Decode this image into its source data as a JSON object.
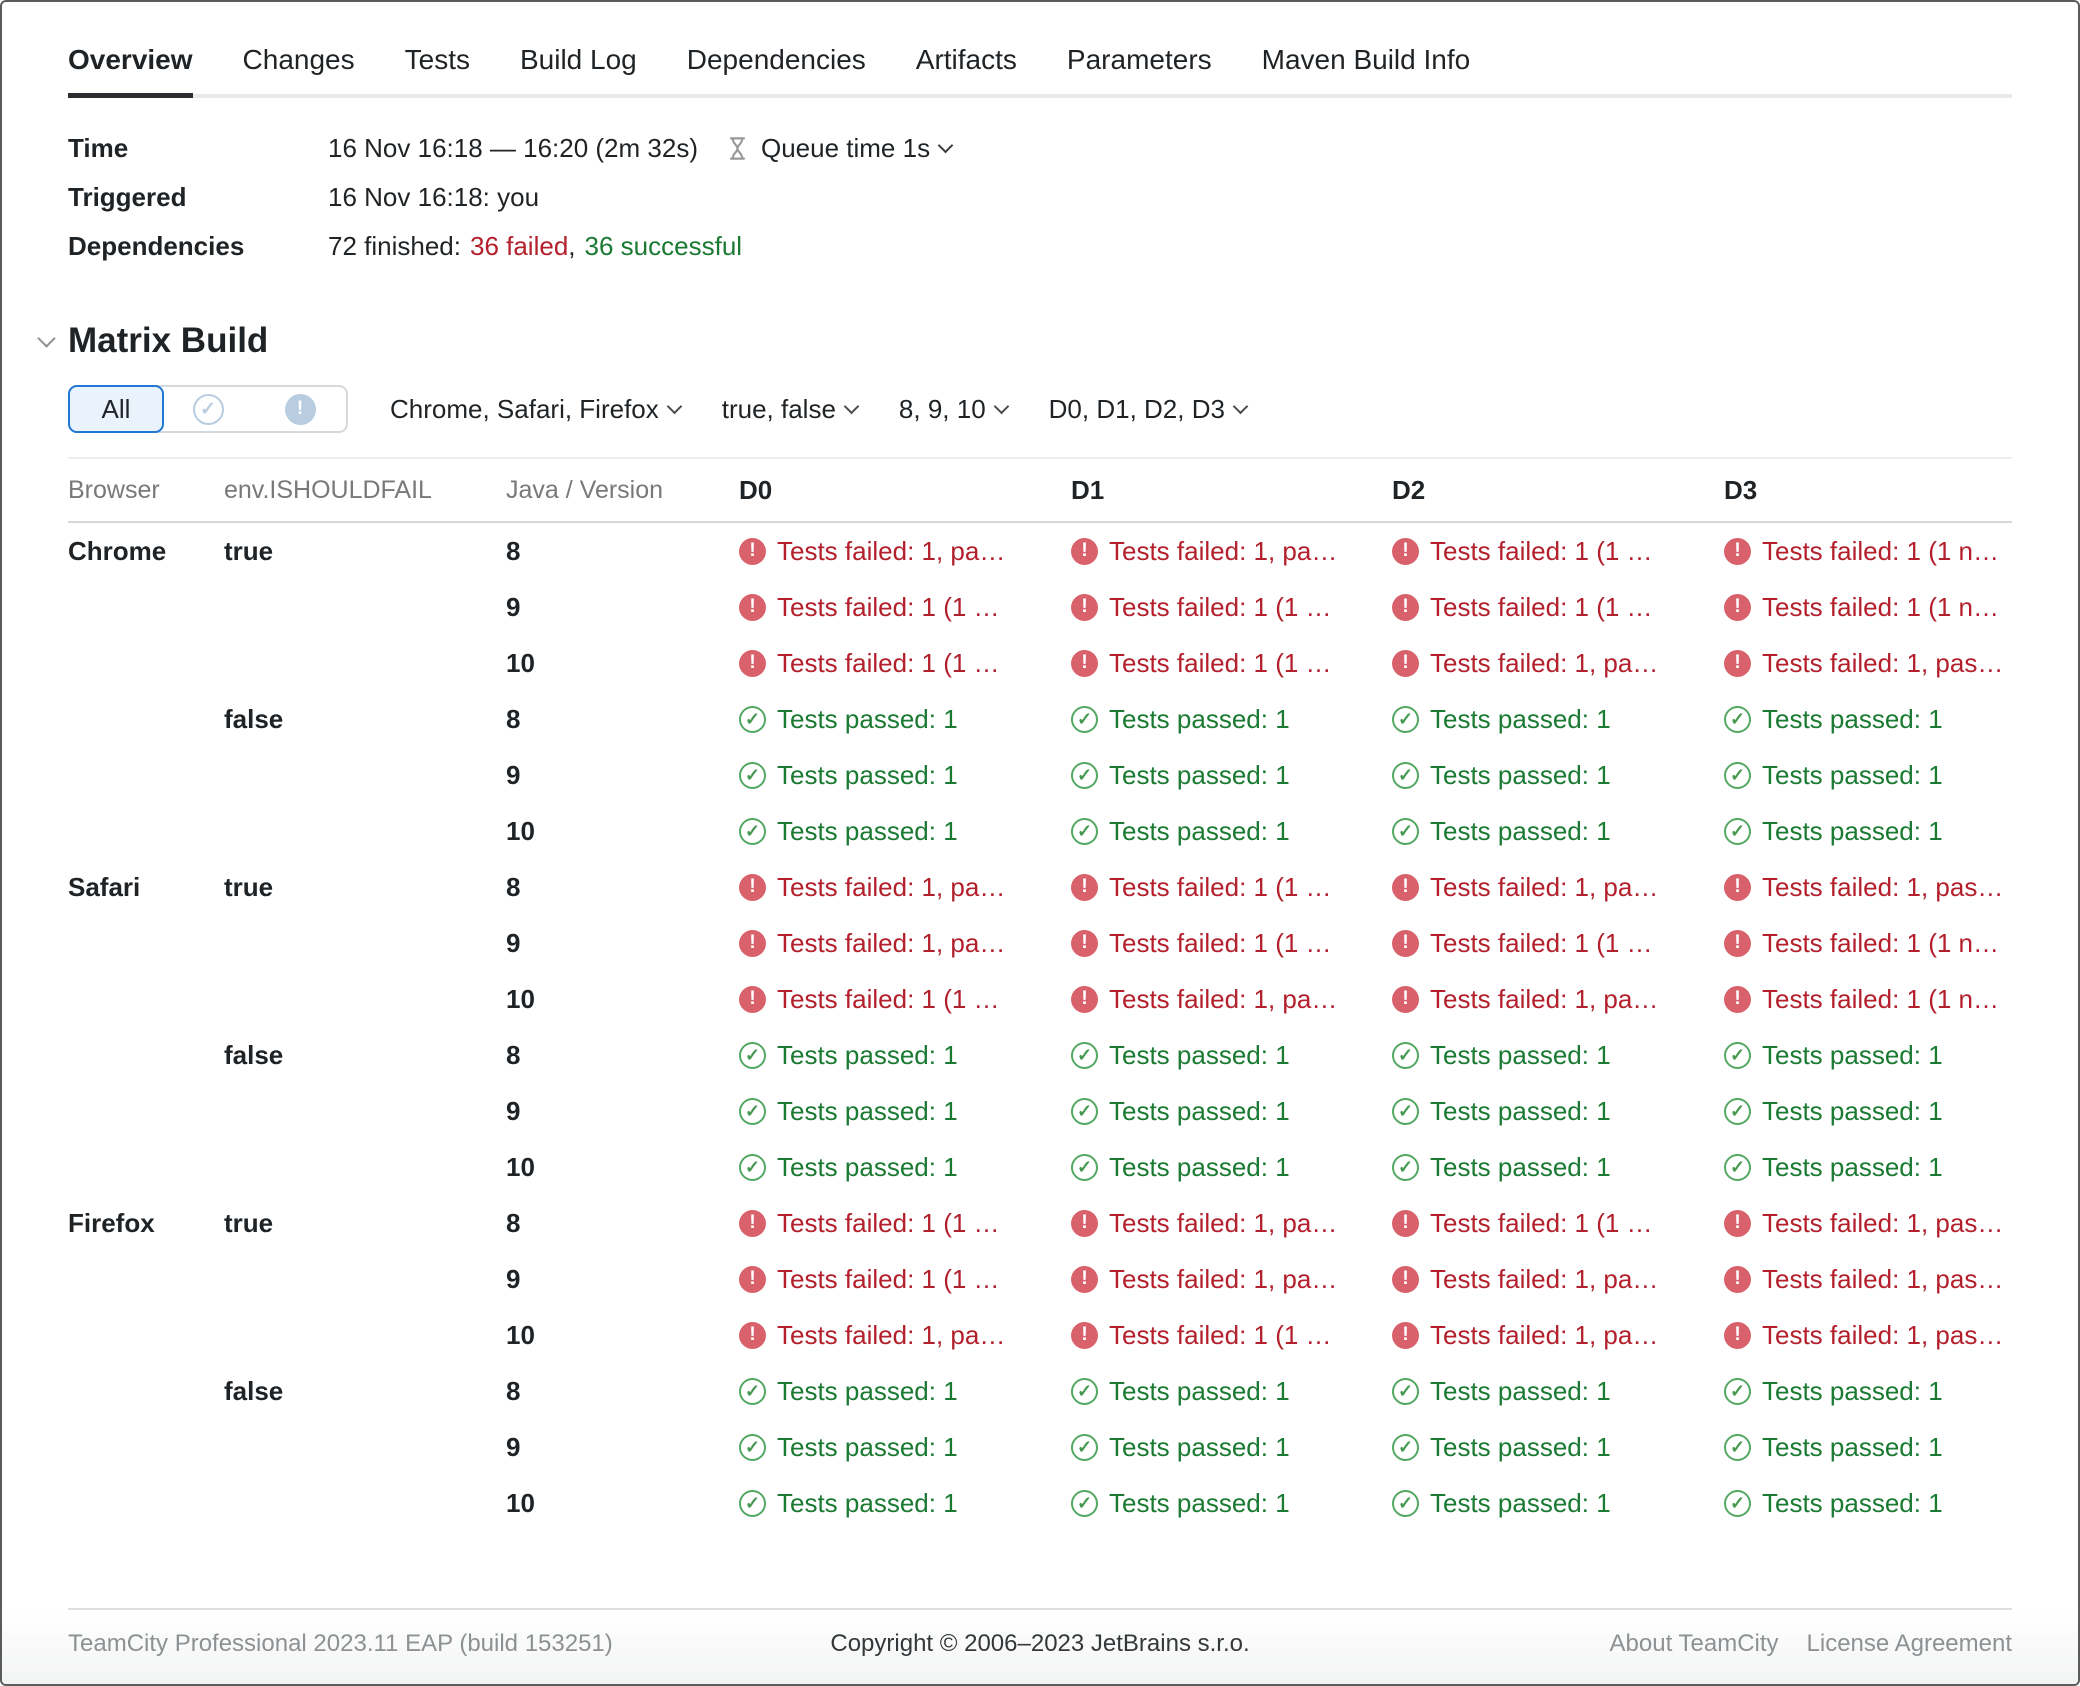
{
  "colors": {
    "failed_text": "#b3202c",
    "failed_icon_bg": "#d9616b",
    "passed_text": "#1a7a32",
    "passed_icon": "#53a862",
    "accent_blue": "#2077d4",
    "segment_icon_muted": "#b9cde0"
  },
  "icons": {
    "failed_glyph": "!",
    "passed_glyph": "✓",
    "segment_passed_glyph": "✓",
    "segment_failed_glyph": "!"
  },
  "tabs": {
    "items": [
      {
        "label": "Overview",
        "active": true
      },
      {
        "label": "Changes",
        "active": false
      },
      {
        "label": "Tests",
        "active": false
      },
      {
        "label": "Build Log",
        "active": false
      },
      {
        "label": "Dependencies",
        "active": false
      },
      {
        "label": "Artifacts",
        "active": false
      },
      {
        "label": "Parameters",
        "active": false
      },
      {
        "label": "Maven Build Info",
        "active": false
      }
    ]
  },
  "info": {
    "time_label": "Time",
    "time_value": "16 Nov 16:18 — 16:20 (2m 32s)",
    "queue_time_label": "Queue time 1s",
    "triggered_label": "Triggered",
    "triggered_value": "16 Nov 16:18: you",
    "dependencies_label": "Dependencies",
    "dependencies_prefix": "72 finished:",
    "dependencies_failed": "36 failed",
    "dependencies_comma": ",",
    "dependencies_successful": "36 successful"
  },
  "matrix": {
    "title": "Matrix Build",
    "segmented": {
      "all_label": "All"
    },
    "filters": [
      {
        "label": "Chrome, Safari, Firefox"
      },
      {
        "label": "true, false"
      },
      {
        "label": "8, 9, 10"
      },
      {
        "label": "D0, D1, D2, D3"
      }
    ],
    "table": {
      "columns": [
        "Browser",
        "env.ISHOULDFAIL",
        "Java / Version",
        "D0",
        "D1",
        "D2",
        "D3"
      ],
      "rows": [
        {
          "browser": "Chrome",
          "env": "true",
          "version": "8",
          "results": [
            {
              "status": "failed",
              "text": "Tests failed: 1, pa…"
            },
            {
              "status": "failed",
              "text": "Tests failed: 1, pa…"
            },
            {
              "status": "failed",
              "text": "Tests failed: 1 (1 …"
            },
            {
              "status": "failed",
              "text": "Tests failed: 1 (1 n…"
            }
          ]
        },
        {
          "browser": "",
          "env": "",
          "version": "9",
          "results": [
            {
              "status": "failed",
              "text": "Tests failed: 1 (1 …"
            },
            {
              "status": "failed",
              "text": "Tests failed: 1 (1 …"
            },
            {
              "status": "failed",
              "text": "Tests failed: 1 (1 …"
            },
            {
              "status": "failed",
              "text": "Tests failed: 1 (1 n…"
            }
          ]
        },
        {
          "browser": "",
          "env": "",
          "version": "10",
          "results": [
            {
              "status": "failed",
              "text": "Tests failed: 1 (1 …"
            },
            {
              "status": "failed",
              "text": "Tests failed: 1 (1 …"
            },
            {
              "status": "failed",
              "text": "Tests failed: 1, pa…"
            },
            {
              "status": "failed",
              "text": "Tests failed: 1, pas…"
            }
          ]
        },
        {
          "browser": "",
          "env": "false",
          "version": "8",
          "results": [
            {
              "status": "passed",
              "text": "Tests passed: 1"
            },
            {
              "status": "passed",
              "text": "Tests passed: 1"
            },
            {
              "status": "passed",
              "text": "Tests passed: 1"
            },
            {
              "status": "passed",
              "text": "Tests passed: 1"
            }
          ]
        },
        {
          "browser": "",
          "env": "",
          "version": "9",
          "results": [
            {
              "status": "passed",
              "text": "Tests passed: 1"
            },
            {
              "status": "passed",
              "text": "Tests passed: 1"
            },
            {
              "status": "passed",
              "text": "Tests passed: 1"
            },
            {
              "status": "passed",
              "text": "Tests passed: 1"
            }
          ]
        },
        {
          "browser": "",
          "env": "",
          "version": "10",
          "results": [
            {
              "status": "passed",
              "text": "Tests passed: 1"
            },
            {
              "status": "passed",
              "text": "Tests passed: 1"
            },
            {
              "status": "passed",
              "text": "Tests passed: 1"
            },
            {
              "status": "passed",
              "text": "Tests passed: 1"
            }
          ]
        },
        {
          "browser": "Safari",
          "env": "true",
          "version": "8",
          "results": [
            {
              "status": "failed",
              "text": "Tests failed: 1, pa…"
            },
            {
              "status": "failed",
              "text": "Tests failed: 1 (1 …"
            },
            {
              "status": "failed",
              "text": "Tests failed: 1, pa…"
            },
            {
              "status": "failed",
              "text": "Tests failed: 1, pas…"
            }
          ]
        },
        {
          "browser": "",
          "env": "",
          "version": "9",
          "results": [
            {
              "status": "failed",
              "text": "Tests failed: 1, pa…"
            },
            {
              "status": "failed",
              "text": "Tests failed: 1 (1 …"
            },
            {
              "status": "failed",
              "text": "Tests failed: 1 (1 …"
            },
            {
              "status": "failed",
              "text": "Tests failed: 1 (1 n…"
            }
          ]
        },
        {
          "browser": "",
          "env": "",
          "version": "10",
          "results": [
            {
              "status": "failed",
              "text": "Tests failed: 1 (1 …"
            },
            {
              "status": "failed",
              "text": "Tests failed: 1, pa…"
            },
            {
              "status": "failed",
              "text": "Tests failed: 1, pa…"
            },
            {
              "status": "failed",
              "text": "Tests failed: 1 (1 n…"
            }
          ]
        },
        {
          "browser": "",
          "env": "false",
          "version": "8",
          "results": [
            {
              "status": "passed",
              "text": "Tests passed: 1"
            },
            {
              "status": "passed",
              "text": "Tests passed: 1"
            },
            {
              "status": "passed",
              "text": "Tests passed: 1"
            },
            {
              "status": "passed",
              "text": "Tests passed: 1"
            }
          ]
        },
        {
          "browser": "",
          "env": "",
          "version": "9",
          "results": [
            {
              "status": "passed",
              "text": "Tests passed: 1"
            },
            {
              "status": "passed",
              "text": "Tests passed: 1"
            },
            {
              "status": "passed",
              "text": "Tests passed: 1"
            },
            {
              "status": "passed",
              "text": "Tests passed: 1"
            }
          ]
        },
        {
          "browser": "",
          "env": "",
          "version": "10",
          "results": [
            {
              "status": "passed",
              "text": "Tests passed: 1"
            },
            {
              "status": "passed",
              "text": "Tests passed: 1"
            },
            {
              "status": "passed",
              "text": "Tests passed: 1"
            },
            {
              "status": "passed",
              "text": "Tests passed: 1"
            }
          ]
        },
        {
          "browser": "Firefox",
          "env": "true",
          "version": "8",
          "results": [
            {
              "status": "failed",
              "text": "Tests failed: 1 (1 …"
            },
            {
              "status": "failed",
              "text": "Tests failed: 1, pa…"
            },
            {
              "status": "failed",
              "text": "Tests failed: 1 (1 …"
            },
            {
              "status": "failed",
              "text": "Tests failed: 1, pas…"
            }
          ]
        },
        {
          "browser": "",
          "env": "",
          "version": "9",
          "results": [
            {
              "status": "failed",
              "text": "Tests failed: 1 (1 …"
            },
            {
              "status": "failed",
              "text": "Tests failed: 1, pa…"
            },
            {
              "status": "failed",
              "text": "Tests failed: 1, pa…"
            },
            {
              "status": "failed",
              "text": "Tests failed: 1, pas…"
            }
          ]
        },
        {
          "browser": "",
          "env": "",
          "version": "10",
          "results": [
            {
              "status": "failed",
              "text": "Tests failed: 1, pa…"
            },
            {
              "status": "failed",
              "text": "Tests failed: 1 (1 …"
            },
            {
              "status": "failed",
              "text": "Tests failed: 1, pa…"
            },
            {
              "status": "failed",
              "text": "Tests failed: 1, pas…"
            }
          ]
        },
        {
          "browser": "",
          "env": "false",
          "version": "8",
          "results": [
            {
              "status": "passed",
              "text": "Tests passed: 1"
            },
            {
              "status": "passed",
              "text": "Tests passed: 1"
            },
            {
              "status": "passed",
              "text": "Tests passed: 1"
            },
            {
              "status": "passed",
              "text": "Tests passed: 1"
            }
          ]
        },
        {
          "browser": "",
          "env": "",
          "version": "9",
          "results": [
            {
              "status": "passed",
              "text": "Tests passed: 1"
            },
            {
              "status": "passed",
              "text": "Tests passed: 1"
            },
            {
              "status": "passed",
              "text": "Tests passed: 1"
            },
            {
              "status": "passed",
              "text": "Tests passed: 1"
            }
          ]
        },
        {
          "browser": "",
          "env": "",
          "version": "10",
          "results": [
            {
              "status": "passed",
              "text": "Tests passed: 1"
            },
            {
              "status": "passed",
              "text": "Tests passed: 1"
            },
            {
              "status": "passed",
              "text": "Tests passed: 1"
            },
            {
              "status": "passed",
              "text": "Tests passed: 1"
            }
          ]
        }
      ]
    }
  },
  "footer": {
    "left": "TeamCity Professional 2023.11 EAP (build 153251)",
    "center": "Copyright © 2006–2023 JetBrains s.r.o.",
    "links": [
      "About TeamCity",
      "License Agreement"
    ]
  }
}
